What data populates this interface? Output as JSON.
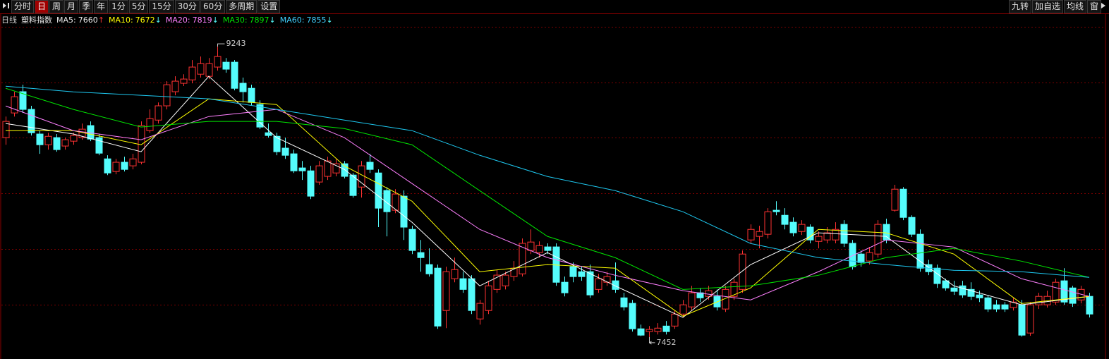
{
  "toolbar": {
    "left": [
      "分时",
      "日",
      "周",
      "月",
      "季",
      "年",
      "1分",
      "5分",
      "15分",
      "30分",
      "60分",
      "多周期",
      "设置"
    ],
    "active": 1,
    "right": [
      "九转",
      "加自选",
      "均线",
      "窗"
    ]
  },
  "chart_data": {
    "type": "candlestick",
    "period": "日线",
    "title": "塑料指数",
    "up_color": "#ff3232",
    "down_color": "#54fcfc",
    "ylim": [
      7356,
      9400
    ],
    "open": [
      8682,
      8834,
      8965,
      8856,
      8704,
      8638,
      8682,
      8630,
      8660,
      8682,
      8756,
      8682,
      8551,
      8473,
      8530,
      8508,
      8530,
      8725,
      8790,
      8878,
      8965,
      9017,
      9038,
      9073,
      9060,
      9117,
      9147,
      9147,
      9017,
      8986,
      8886,
      8712,
      8690,
      8617,
      8582,
      8495,
      8477,
      8408,
      8443,
      8464,
      8521,
      8451,
      8377,
      8530,
      8464,
      8356,
      8234,
      8321,
      8116,
      7973,
      7899,
      7877,
      7616,
      7812,
      7812,
      7812,
      7564,
      7616,
      7746,
      7768,
      7825,
      7842,
      7986,
      7973,
      8008,
      8008,
      7790,
      7886,
      7855,
      7855,
      7746,
      7790,
      7799,
      7694,
      7660,
      7503,
      7486,
      7486,
      7520,
      7520,
      7594,
      7638,
      7725,
      7703,
      7703,
      7625,
      7703,
      7746,
      8051,
      8073,
      8086,
      8234,
      8203,
      8160,
      8103,
      8130,
      8042,
      8051,
      8051,
      8147,
      8030,
      7964,
      7921,
      7964,
      8147,
      8234,
      8364,
      8190,
      8086,
      7899,
      7877,
      7799,
      7755,
      7768,
      7746,
      7712,
      7694,
      7651,
      7651,
      7634,
      7651,
      7477,
      7651,
      7651,
      7668,
      7799,
      7755,
      7681,
      7703
    ],
    "high": [
      8812,
      8965,
      9008,
      8878,
      8725,
      8712,
      8704,
      8682,
      8712,
      8769,
      8782,
      8704,
      8573,
      8551,
      8564,
      8582,
      8782,
      8856,
      8899,
      9030,
      9060,
      9073,
      9160,
      9182,
      9173,
      9243,
      9173,
      9160,
      9052,
      9008,
      8912,
      8769,
      8712,
      8682,
      8608,
      8538,
      8508,
      8538,
      8564,
      8551,
      8538,
      8464,
      8538,
      8582,
      8486,
      8377,
      8364,
      8356,
      8138,
      8051,
      7999,
      7899,
      7886,
      7942,
      7855,
      7834,
      7681,
      7799,
      7868,
      7855,
      7921,
      8060,
      8116,
      8042,
      8030,
      8030,
      7825,
      7912,
      7886,
      7899,
      7842,
      7855,
      7912,
      7725,
      7681,
      7529,
      7520,
      7538,
      7551,
      7616,
      7681,
      7768,
      7755,
      7768,
      7746,
      7768,
      7812,
      7986,
      8147,
      8138,
      8247,
      8290,
      8247,
      8190,
      8173,
      8147,
      8103,
      8130,
      8160,
      8173,
      8051,
      7986,
      8008,
      8173,
      8182,
      8391,
      8377,
      8203,
      8116,
      7929,
      7899,
      7812,
      7799,
      7799,
      7790,
      7738,
      7712,
      7681,
      7668,
      7694,
      7681,
      7668,
      7725,
      7738,
      7812,
      7877,
      7768,
      7768,
      7725
    ],
    "low": [
      8638,
      8812,
      8834,
      8695,
      8582,
      8608,
      8595,
      8608,
      8638,
      8669,
      8660,
      8573,
      8451,
      8456,
      8473,
      8486,
      8517,
      8712,
      8769,
      8856,
      8943,
      9000,
      9017,
      9052,
      9043,
      9095,
      9082,
      8973,
      8899,
      8878,
      8734,
      8682,
      8573,
      8551,
      8464,
      8421,
      8303,
      8391,
      8421,
      8443,
      8430,
      8312,
      8312,
      8464,
      8130,
      8073,
      8216,
      8051,
      7964,
      7855,
      7825,
      7503,
      7507,
      7790,
      7725,
      7594,
      7529,
      7594,
      7725,
      7746,
      7799,
      7825,
      7964,
      7942,
      7964,
      7768,
      7703,
      7790,
      7799,
      7694,
      7725,
      7768,
      7725,
      7616,
      7486,
      7458,
      7452,
      7468,
      7468,
      7503,
      7573,
      7616,
      7668,
      7681,
      7616,
      7607,
      7681,
      7725,
      8030,
      7999,
      8060,
      8203,
      8116,
      8073,
      8082,
      8030,
      7999,
      8030,
      8030,
      8008,
      7868,
      7886,
      7899,
      7942,
      8030,
      8225,
      8173,
      8069,
      7855,
      7834,
      7755,
      7738,
      7712,
      7694,
      7681,
      7668,
      7607,
      7607,
      7607,
      7616,
      7455,
      7460,
      7625,
      7634,
      7651,
      7651,
      7638,
      7660,
      7573
    ],
    "close": [
      8782,
      8934,
      8856,
      8712,
      8638,
      8690,
      8608,
      8669,
      8695,
      8734,
      8673,
      8586,
      8464,
      8530,
      8486,
      8551,
      8756,
      8799,
      8878,
      9008,
      9030,
      9043,
      9117,
      9138,
      9138,
      9182,
      9104,
      8986,
      8965,
      8899,
      8747,
      8695,
      8595,
      8573,
      8477,
      8477,
      8321,
      8508,
      8538,
      8521,
      8443,
      8325,
      8508,
      8486,
      8247,
      8225,
      8334,
      8130,
      7986,
      7942,
      7842,
      7520,
      7855,
      7868,
      7746,
      7616,
      7660,
      7768,
      7834,
      7834,
      7877,
      8030,
      8038,
      8016,
      7986,
      7790,
      7725,
      7825,
      7825,
      7712,
      7812,
      7825,
      7746,
      7638,
      7503,
      7464,
      7499,
      7507,
      7486,
      7594,
      7651,
      7725,
      7694,
      7738,
      7638,
      7746,
      7790,
      7964,
      8116,
      8103,
      8225,
      8225,
      8147,
      8095,
      8147,
      8051,
      8073,
      8095,
      8116,
      8030,
      7886,
      7912,
      7973,
      8147,
      8051,
      8364,
      8190,
      8086,
      7877,
      7855,
      7782,
      7755,
      7734,
      7712,
      7703,
      7694,
      7625,
      7625,
      7625,
      7668,
      7464,
      7651,
      7703,
      7703,
      7790,
      7668,
      7660,
      7746,
      7594
    ],
    "series": [
      {
        "name": "MA5:",
        "last": 7660,
        "trend": "↑",
        "trend_color": "#ff3232",
        "color": "#ffffff",
        "label_color": "#e8e8e8",
        "x": [
          0,
          8,
          16,
          24,
          32,
          40,
          48,
          56,
          64,
          72,
          80,
          88,
          96,
          104,
          112,
          120,
          128
        ],
        "values": [
          8769,
          8704,
          8595,
          9060,
          8682,
          8486,
          8160,
          7768,
          7973,
          7768,
          7573,
          7899,
          8095,
          8073,
          7768,
          7651,
          7703
        ]
      },
      {
        "name": "MA10:",
        "last": 7672,
        "trend": "↓",
        "trend_color": "#54fcfc",
        "color": "#ffff00",
        "label_color": "#ffff00",
        "x": [
          0,
          8,
          16,
          24,
          32,
          40,
          48,
          56,
          64,
          72,
          80,
          88,
          96,
          104,
          112,
          120,
          128
        ],
        "values": [
          8725,
          8725,
          8638,
          8921,
          8886,
          8508,
          8290,
          7855,
          7899,
          7877,
          7581,
          7755,
          8116,
          8095,
          7964,
          7659,
          7703
        ]
      },
      {
        "name": "MA20:",
        "last": 7819,
        "trend": "↓",
        "trend_color": "#54fcfc",
        "color": "#ff80ff",
        "label_color": "#ff80ff",
        "x": [
          0,
          8,
          16,
          24,
          32,
          40,
          48,
          56,
          64,
          72,
          80,
          88,
          96,
          104,
          112,
          120,
          128
        ],
        "values": [
          8877,
          8725,
          8669,
          8812,
          8856,
          8682,
          8399,
          8116,
          7942,
          7833,
          7738,
          7681,
          7855,
          8051,
          8007,
          7812,
          7703
        ]
      },
      {
        "name": "MA30:",
        "last": 7897,
        "trend": "↓",
        "trend_color": "#54fcfc",
        "color": "#00e600",
        "label_color": "#00e600",
        "x": [
          0,
          8,
          16,
          24,
          32,
          40,
          48,
          56,
          64,
          72,
          80,
          88,
          96,
          104,
          112,
          120,
          128
        ],
        "values": [
          8986,
          8856,
          8747,
          8782,
          8782,
          8738,
          8638,
          8355,
          8073,
          7942,
          7746,
          7768,
          7833,
          7942,
          7999,
          7920,
          7820
        ]
      },
      {
        "name": "MA60:",
        "last": 7855,
        "trend": "↓",
        "trend_color": "#54fcfc",
        "color": "#1ec8f0",
        "label_color": "#40d0ff",
        "x": [
          0,
          8,
          16,
          24,
          32,
          40,
          48,
          56,
          64,
          72,
          80,
          88,
          96,
          104,
          112,
          120,
          128
        ],
        "values": [
          8999,
          8964,
          8943,
          8921,
          8856,
          8790,
          8725,
          8573,
          8442,
          8355,
          8225,
          8029,
          7942,
          7899,
          7864,
          7855,
          7820
        ]
      }
    ]
  }
}
